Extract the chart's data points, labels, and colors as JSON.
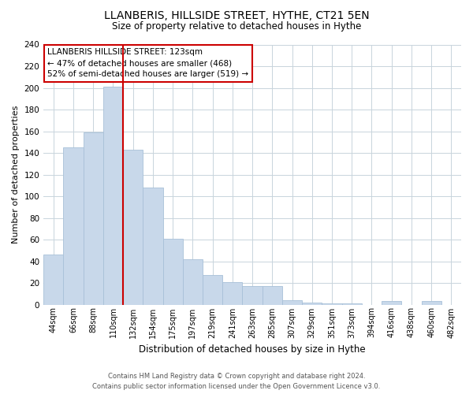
{
  "title": "LLANBERIS, HILLSIDE STREET, HYTHE, CT21 5EN",
  "subtitle": "Size of property relative to detached houses in Hythe",
  "xlabel": "Distribution of detached houses by size in Hythe",
  "ylabel": "Number of detached properties",
  "bar_color": "#c8d8ea",
  "bar_edge_color": "#a8c0d8",
  "categories": [
    "44sqm",
    "66sqm",
    "88sqm",
    "110sqm",
    "132sqm",
    "154sqm",
    "175sqm",
    "197sqm",
    "219sqm",
    "241sqm",
    "263sqm",
    "285sqm",
    "307sqm",
    "329sqm",
    "351sqm",
    "373sqm",
    "394sqm",
    "416sqm",
    "438sqm",
    "460sqm",
    "482sqm"
  ],
  "values": [
    46,
    145,
    159,
    201,
    143,
    108,
    61,
    42,
    27,
    21,
    17,
    17,
    4,
    2,
    1,
    1,
    0,
    3,
    0,
    3
  ],
  "ylim": [
    0,
    240
  ],
  "yticks": [
    0,
    20,
    40,
    60,
    80,
    100,
    120,
    140,
    160,
    180,
    200,
    220,
    240
  ],
  "vline_color": "#cc0000",
  "vline_x_index": 3.5,
  "annotation_title": "LLANBERIS HILLSIDE STREET: 123sqm",
  "annotation_line1": "← 47% of detached houses are smaller (468)",
  "annotation_line2": "52% of semi-detached houses are larger (519) →",
  "annotation_box_color": "#ffffff",
  "annotation_box_edge": "#cc0000",
  "footer1": "Contains HM Land Registry data © Crown copyright and database right 2024.",
  "footer2": "Contains public sector information licensed under the Open Government Licence v3.0.",
  "background_color": "#ffffff",
  "grid_color": "#c8d4dc"
}
